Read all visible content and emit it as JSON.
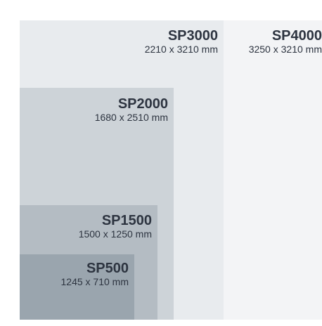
{
  "sizes": [
    {
      "model": "SP4000",
      "dims": "3250 x 3210 mm",
      "color": "#f3f4f6"
    },
    {
      "model": "SP3000",
      "dims": "2210 x 3210 mm",
      "color": "#e8ebee"
    },
    {
      "model": "SP2000",
      "dims": "1680 x 2510 mm",
      "color": "#cdd3d8"
    },
    {
      "model": "SP1500",
      "dims": "1500 x 1250 mm",
      "color": "#b4bcc3"
    },
    {
      "model": "SP500",
      "dims": "1245 x 710 mm",
      "color": "#9aa5ae"
    }
  ]
}
